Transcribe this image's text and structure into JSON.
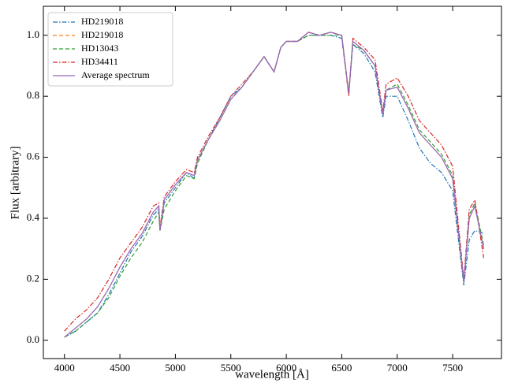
{
  "chart_data": {
    "type": "line",
    "xlabel": "wavelength [Å]",
    "ylabel": "Flux [arbitrary]",
    "x": [
      4000,
      4100,
      4200,
      4300,
      4400,
      4500,
      4600,
      4700,
      4800,
      4850,
      4861,
      4900,
      5000,
      5100,
      5170,
      5200,
      5300,
      5400,
      5500,
      5600,
      5700,
      5800,
      5890,
      5950,
      6000,
      6100,
      6200,
      6300,
      6400,
      6500,
      6563,
      6600,
      6700,
      6800,
      6870,
      6900,
      7000,
      7100,
      7200,
      7300,
      7400,
      7500,
      7600,
      7650,
      7700,
      7780
    ],
    "series": [
      {
        "name": "HD219018",
        "color": "#1f77b4",
        "linestyle": "-.",
        "values": [
          0.01,
          0.03,
          0.06,
          0.09,
          0.15,
          0.22,
          0.29,
          0.34,
          0.41,
          0.43,
          0.36,
          0.45,
          0.5,
          0.55,
          0.53,
          0.59,
          0.66,
          0.73,
          0.8,
          0.83,
          0.88,
          0.93,
          0.88,
          0.96,
          0.98,
          0.98,
          1.0,
          1.0,
          1.0,
          0.99,
          0.81,
          0.97,
          0.94,
          0.88,
          0.73,
          0.8,
          0.8,
          0.72,
          0.63,
          0.58,
          0.55,
          0.49,
          0.18,
          0.33,
          0.36,
          0.35
        ]
      },
      {
        "name": "HD219018",
        "color": "#ff7f0e",
        "linestyle": "--",
        "values": [
          0.01,
          0.04,
          0.07,
          0.11,
          0.17,
          0.24,
          0.3,
          0.35,
          0.42,
          0.44,
          0.36,
          0.46,
          0.51,
          0.55,
          0.54,
          0.59,
          0.66,
          0.72,
          0.79,
          0.83,
          0.88,
          0.93,
          0.88,
          0.96,
          0.98,
          0.98,
          1.01,
          1.0,
          1.01,
          1.0,
          0.81,
          0.98,
          0.95,
          0.9,
          0.74,
          0.82,
          0.83,
          0.76,
          0.68,
          0.64,
          0.6,
          0.53,
          0.19,
          0.4,
          0.44,
          0.3
        ]
      },
      {
        "name": "HD13043",
        "color": "#2ca02c",
        "linestyle": "--",
        "values": [
          0.01,
          0.03,
          0.06,
          0.09,
          0.14,
          0.21,
          0.27,
          0.32,
          0.39,
          0.42,
          0.36,
          0.43,
          0.49,
          0.54,
          0.53,
          0.58,
          0.66,
          0.72,
          0.79,
          0.83,
          0.88,
          0.93,
          0.88,
          0.96,
          0.98,
          0.98,
          1.0,
          1.0,
          1.0,
          1.0,
          0.81,
          0.97,
          0.95,
          0.9,
          0.74,
          0.82,
          0.84,
          0.77,
          0.69,
          0.65,
          0.61,
          0.54,
          0.19,
          0.41,
          0.45,
          0.31
        ]
      },
      {
        "name": "HD34411",
        "color": "#d62728",
        "linestyle": "-.",
        "values": [
          0.03,
          0.07,
          0.1,
          0.14,
          0.2,
          0.27,
          0.32,
          0.37,
          0.44,
          0.45,
          0.37,
          0.47,
          0.52,
          0.56,
          0.55,
          0.6,
          0.67,
          0.73,
          0.8,
          0.84,
          0.88,
          0.93,
          0.88,
          0.96,
          0.98,
          0.98,
          1.01,
          1.0,
          1.01,
          1.0,
          0.8,
          0.99,
          0.96,
          0.92,
          0.75,
          0.84,
          0.86,
          0.8,
          0.72,
          0.68,
          0.64,
          0.57,
          0.2,
          0.43,
          0.46,
          0.27
        ]
      },
      {
        "name": "Average spectrum",
        "color": "#9467bd",
        "linestyle": "-",
        "values": [
          0.01,
          0.04,
          0.07,
          0.11,
          0.17,
          0.24,
          0.3,
          0.35,
          0.42,
          0.44,
          0.36,
          0.46,
          0.51,
          0.55,
          0.54,
          0.59,
          0.66,
          0.72,
          0.79,
          0.83,
          0.88,
          0.93,
          0.88,
          0.96,
          0.98,
          0.98,
          1.01,
          1.0,
          1.01,
          1.0,
          0.81,
          0.98,
          0.95,
          0.9,
          0.74,
          0.82,
          0.83,
          0.76,
          0.68,
          0.64,
          0.6,
          0.53,
          0.19,
          0.4,
          0.44,
          0.3
        ]
      }
    ],
    "xlim": [
      3810,
      7940
    ],
    "ylim": [
      -0.06,
      1.095
    ],
    "xticks": [
      4000,
      4500,
      5000,
      5500,
      6000,
      6500,
      7000,
      7500
    ],
    "yticks": [
      {
        "value": 0,
        "label": "0.0"
      },
      0.2,
      0.4,
      0.6,
      0.8,
      {
        "value": 1,
        "label": "1.0"
      }
    ],
    "legend": "upper left"
  }
}
